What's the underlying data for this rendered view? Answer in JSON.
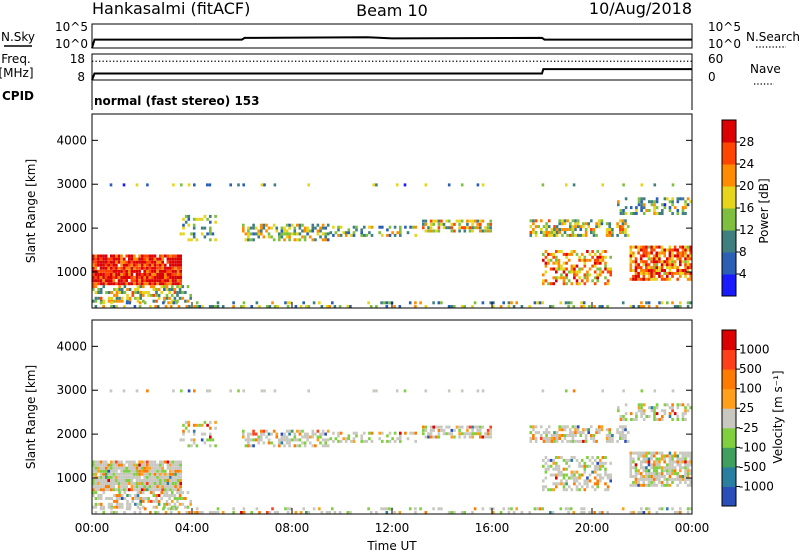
{
  "header": {
    "station": "Hankasalmi (fitACF)",
    "beam": "Beam 10",
    "date": "10/Aug/2018"
  },
  "left_labels": {
    "nsky": "N.Sky",
    "freq": "Freq.",
    "freq_unit": "[MHz]",
    "cpid": "CPID"
  },
  "right_labels": {
    "nsearch": "N.Search",
    "nave": "Nave"
  },
  "mode_text": "normal (fast stereo) 153",
  "time_axis": {
    "ticks": [
      "00:00",
      "04:00",
      "08:00",
      "12:00",
      "16:00",
      "20:00",
      "00:00"
    ],
    "label": "Time UT"
  },
  "chart_data": [
    {
      "type": "line",
      "name_label": "N.Sky",
      "ylim_labels": [
        "10^0",
        "10^5"
      ],
      "right_ylim_labels": [
        "10^0",
        "10^5"
      ],
      "x_hours": [
        0,
        0.1,
        6,
        6.1,
        11,
        12,
        18,
        18.1,
        24
      ],
      "level_frac": [
        0.0,
        0.35,
        0.35,
        0.42,
        0.45,
        0.4,
        0.42,
        0.35,
        0.35
      ]
    },
    {
      "type": "line",
      "name_label": "Freq.",
      "left_ticks": [
        "8",
        "18"
      ],
      "right_ticks": [
        "0",
        "60"
      ],
      "freq_x_hours": [
        0,
        0.1,
        6,
        18,
        18.05,
        24
      ],
      "freq_frac": [
        0.0,
        0.25,
        0.25,
        0.25,
        0.42,
        0.42
      ],
      "nave_level_frac": 0.72
    },
    {
      "type": "heatmap",
      "quantity": "Power",
      "ylabel": "Slant Range [km]",
      "yticks": [
        "1000",
        "2000",
        "3000",
        "4000"
      ],
      "ylim": [
        180,
        4600
      ],
      "colorbar_title": "Power [dB]",
      "colorbar_ticks": [
        "4",
        "8",
        "12",
        "16",
        "20",
        "24",
        "28"
      ],
      "colorbar_colors": [
        "#1a1aff",
        "#2a5fb5",
        "#3f7f7f",
        "#7fbf3f",
        "#e6d51a",
        "#ff8c00",
        "#ff4500",
        "#dd0000"
      ]
    },
    {
      "type": "heatmap",
      "quantity": "Velocity",
      "ylabel": "Slant Range [km]",
      "yticks": [
        "1000",
        "2000",
        "3000",
        "4000"
      ],
      "ylim": [
        180,
        4600
      ],
      "colorbar_title": "Velocity [m s⁻¹]",
      "colorbar_ticks": [
        "1000",
        "500",
        "100",
        "25",
        "-25",
        "-100",
        "-500",
        "-1000"
      ],
      "colorbar_colors": [
        "#2a4fb8",
        "#2a7fa0",
        "#3f9f5f",
        "#7fcf3f",
        "#c8c8c0",
        "#ff9f1a",
        "#ff7a00",
        "#ff3f1a",
        "#dd0000"
      ]
    }
  ]
}
